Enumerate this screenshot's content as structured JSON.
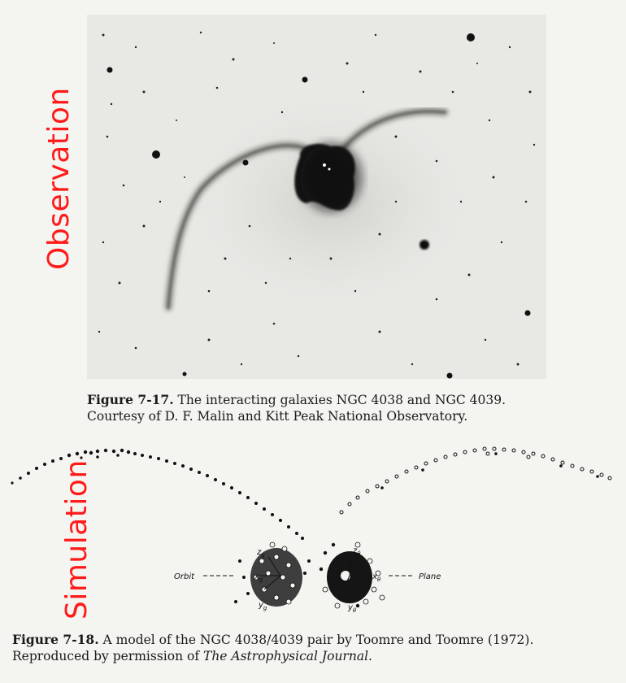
{
  "labels": {
    "observation": "Observation",
    "simulation": "Simulation"
  },
  "figure1": {
    "number": "Figure 7-17.",
    "text_line1": "The interacting galaxies NGC 4038 and NGC 4039.",
    "text_line2": "Courtesy of D. F. Malin and Kitt Peak National Observatory."
  },
  "figure2": {
    "number": "Figure 7-18.",
    "text_line1": "A model of the NGC 4038/4039 pair by Toomre and Toomre (1972).",
    "text_line2_prefix": "Reproduced by permission of ",
    "journal": "The Astrophysical Journal",
    "text_line2_suffix": ".",
    "annotations": {
      "orbit": "Orbit",
      "plane": "Plane",
      "x_left": "x",
      "x_left_sub": "g",
      "y_left": "y",
      "y_left_sub": "g",
      "z_left": "z",
      "z_left_sub": "g",
      "x_right": "x",
      "x_right_sub": "θ",
      "y_right": "y",
      "y_right_sub": "θ",
      "z_right": "z",
      "z_right_sub": "θ"
    }
  },
  "colors": {
    "label_red": "#ff1a1a",
    "ink": "#111111",
    "photo_bg": "#e9e9e6"
  }
}
